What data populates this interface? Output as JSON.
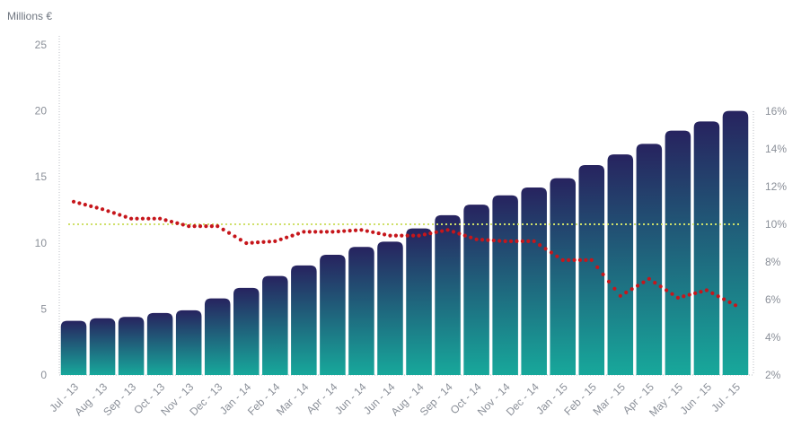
{
  "chart_data": {
    "type": "bar",
    "ylabel": "Millions €",
    "categories": [
      "Jul - 13",
      "Aug - 13",
      "Sep - 13",
      "Oct - 13",
      "Nov - 13",
      "Dec - 13",
      "Jan - 14",
      "Feb - 14",
      "Mar - 14",
      "Apr - 14",
      "Jun - 14",
      "Jun - 14",
      "Aug - 14",
      "Sep - 14",
      "Oct - 14",
      "Nov - 14",
      "Dec - 14",
      "Jan - 15",
      "Feb - 15",
      "Mar - 15",
      "Apr - 15",
      "May - 15",
      "Jun - 15",
      "Jul - 15"
    ],
    "values": [
      4.1,
      4.3,
      4.4,
      4.7,
      4.9,
      5.8,
      6.6,
      7.5,
      8.3,
      9.1,
      9.7,
      10.1,
      11.1,
      12.1,
      12.9,
      13.6,
      14.2,
      14.9,
      15.9,
      16.7,
      17.5,
      18.5,
      19.2,
      20.0
    ],
    "ylim": [
      0,
      25
    ],
    "yticks": [
      "0",
      "5",
      "10",
      "15",
      "20",
      "25"
    ],
    "y2ticks": [
      "2%",
      "4%",
      "6%",
      "8%",
      "10%",
      "12%",
      "14%",
      "16%"
    ],
    "y2lim": [
      2,
      16
    ],
    "line_series": [
      {
        "style": "dotted",
        "values": [
          11.2,
          10.8,
          10.3,
          10.3,
          9.9,
          9.9,
          9.0,
          9.1,
          9.6,
          9.6,
          9.7,
          9.4,
          9.4,
          9.7,
          9.2,
          9.1,
          9.1,
          8.1,
          8.1,
          6.2,
          7.1,
          6.1,
          6.5,
          5.7
        ]
      }
    ],
    "reference_line": {
      "value": 10,
      "style": "dotted"
    },
    "grid": false,
    "colors": {
      "bar_top": "#27235f",
      "bar_bottom": "#17a89b",
      "line": "#c6161b",
      "reference": "#cfe06a",
      "axis": "#b8bcc3"
    }
  }
}
